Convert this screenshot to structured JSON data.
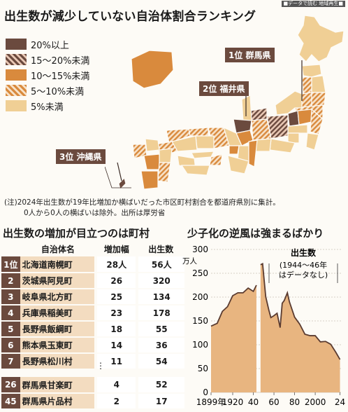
{
  "source_tag": "■データで読む 地域再生■",
  "title": "出生数が減少していない自治体割合ランキング",
  "legend": [
    {
      "label": "20%以上",
      "color": "#6b4a3e",
      "pattern": "solid"
    },
    {
      "label": "15〜20%未満",
      "color": "#6b4a3e",
      "pattern": "hatch"
    },
    {
      "label": "10〜15%未満",
      "color": "#d98a3d",
      "pattern": "solid"
    },
    {
      "label": "5〜10%未満",
      "color": "#d98a3d",
      "pattern": "hatch"
    },
    {
      "label": "5%未満",
      "color": "#f0cf95",
      "pattern": "solid"
    }
  ],
  "callouts": {
    "rank1": "1位 群馬県",
    "rank2": "2位 福井県",
    "rank3": "3位 沖縄県"
  },
  "note": {
    "line1": "(注)2024年出生数が19年比増加か横ばいだった市区町村割合を都道府県別に集計。",
    "line2": "0人から0人の横ばいは除外。出所は厚労省"
  },
  "ranking": {
    "title": "出生数の増加が目立つのは町村",
    "headers": {
      "name": "自治体名",
      "increase": "増加幅",
      "births": "出生数"
    },
    "rows": [
      {
        "rank": "1位",
        "name": "北海道南幌町",
        "increase": "28人",
        "births": "56人"
      },
      {
        "rank": "2",
        "name": "茨城県阿見町",
        "increase": "26",
        "births": "320"
      },
      {
        "rank": "3",
        "name": "岐阜県北方町",
        "increase": "25",
        "births": "134"
      },
      {
        "rank": "4",
        "name": "兵庫県稲美町",
        "increase": "23",
        "births": "178"
      },
      {
        "rank": "5",
        "name": "長野県飯綱町",
        "increase": "18",
        "births": "55"
      },
      {
        "rank": "6",
        "name": "熊本県玉東町",
        "increase": "14",
        "births": "36"
      },
      {
        "rank": "7",
        "name": "長野県松川村",
        "increase": "11",
        "births": "54"
      }
    ],
    "ellipsis": "⋮",
    "bottom_rows": [
      {
        "rank": "26",
        "name": "群馬県甘楽町",
        "increase": "4",
        "births": "52"
      },
      {
        "rank": "45",
        "name": "群馬県片品村",
        "increase": "2",
        "births": "17"
      }
    ]
  },
  "chart_data": {
    "type": "area",
    "title": "少子化の逆風は強まるばかり",
    "ylabel": "万人",
    "series_label": "出生数",
    "annotation": "(1944〜46年はデータなし)",
    "yticks": [
      0,
      50,
      100,
      150,
      200,
      250,
      300
    ],
    "ylim": [
      0,
      300
    ],
    "xlim": [
      1899,
      2025
    ],
    "xticks": [
      {
        "value": 1899,
        "label": "1899年"
      },
      {
        "value": 1920,
        "label": "1920"
      },
      {
        "value": 1940,
        "label": "40"
      },
      {
        "value": 1960,
        "label": "60"
      },
      {
        "value": 1980,
        "label": "80"
      },
      {
        "value": 2000,
        "label": "2000"
      },
      {
        "value": 2024,
        "label": "24"
      }
    ],
    "segments": [
      {
        "x": [
          1899,
          1905,
          1910,
          1915,
          1920,
          1925,
          1930,
          1935,
          1940,
          1943
        ],
        "y": [
          139,
          145,
          170,
          180,
          203,
          209,
          209,
          219,
          212,
          225
        ]
      },
      {
        "x": [
          1947,
          1949,
          1952,
          1955,
          1957,
          1960,
          1963,
          1966,
          1968,
          1970,
          1973,
          1975,
          1980,
          1985,
          1990,
          1995,
          2000,
          2005,
          2010,
          2015,
          2020,
          2024
        ],
        "y": [
          268,
          270,
          201,
          173,
          157,
          161,
          166,
          136,
          187,
          193,
          209,
          190,
          158,
          143,
          122,
          119,
          119,
          106,
          107,
          101,
          84,
          69
        ]
      }
    ],
    "color_fill": "#e8b580",
    "color_line": "#5a3b30"
  }
}
